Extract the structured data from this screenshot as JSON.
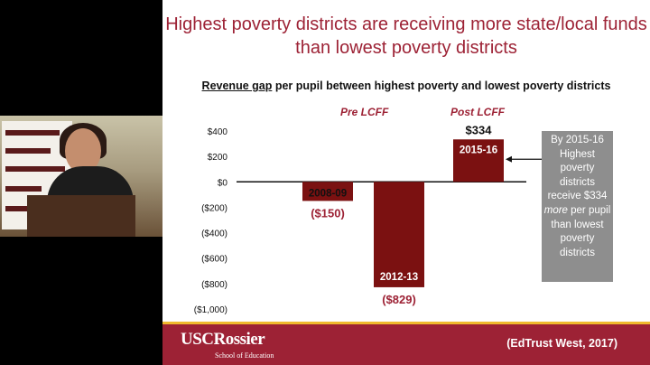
{
  "slide": {
    "title": "Highest poverty districts are receiving more state/local funds than lowest poverty districts",
    "subtitle_underlined": "Revenue gap",
    "subtitle_rest": " per pupil between highest poverty and lowest poverty districts",
    "pre_label": "Pre LCFF",
    "post_label": "Post LCFF",
    "note": "By 2015-16 Highest poverty districts receive $334 more per pupil than lowest poverty districts",
    "note_parts": [
      "By 2015-16 Highest poverty districts receive $334 ",
      "more",
      " per pupil than lowest poverty districts"
    ],
    "logo_main": "USCRossier",
    "logo_sub": "School of Education",
    "citation": "(EdTrust West, 2017)"
  },
  "colors": {
    "accent": "#9d2235",
    "bar": "#7b1111",
    "note_bg": "#8e8e8e",
    "footer_stripe": "#f0b92d"
  },
  "chart_data": {
    "type": "bar",
    "categories": [
      "2008-09",
      "2012-13",
      "2015-16"
    ],
    "values": [
      -150,
      -829,
      334
    ],
    "value_labels": [
      "($150)",
      "($829)",
      "$334"
    ],
    "ylim": [
      -1000,
      400
    ],
    "yticks": [
      400,
      200,
      0,
      -200,
      -400,
      -600,
      -800,
      -1000
    ],
    "ytick_labels": [
      "$400",
      "$200",
      "$0",
      "($200)",
      "($400)",
      "($600)",
      "($800)",
      "($1,000)"
    ],
    "xlabel": "",
    "ylabel": ""
  }
}
